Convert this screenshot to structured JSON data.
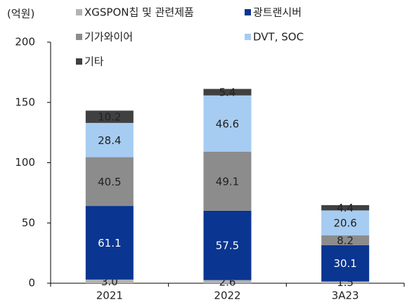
{
  "chart_data": {
    "type": "stacked_bar",
    "y_label": "(억원)",
    "categories": [
      "2021",
      "2022",
      "3A23"
    ],
    "series": [
      {
        "name": "XGSPON칩 및 관련제품",
        "color": "#b3b3b3",
        "label_color": "#222222",
        "values": [
          3.0,
          2.6,
          1.5
        ],
        "value_labels": [
          "3.0",
          "2.6",
          "1.5"
        ]
      },
      {
        "name": "광트랜시버",
        "color": "#0a3591",
        "label_color": "#ffffff",
        "values": [
          61.1,
          57.5,
          30.1
        ]
      },
      {
        "name": "기가와이어",
        "color": "#8c8c8c",
        "label_color": "#222222",
        "values": [
          40.5,
          49.1,
          8.2
        ]
      },
      {
        "name": "DVT, SOC",
        "color": "#a6ccf2",
        "label_color": "#222222",
        "values": [
          28.4,
          46.6,
          20.6
        ]
      },
      {
        "name": "기타",
        "color": "#404040",
        "label_color": "#222222",
        "values": [
          10.2,
          5.4,
          4.4
        ]
      }
    ],
    "ylim": [
      0,
      200
    ],
    "yticks": [
      0,
      50,
      100,
      150,
      200
    ],
    "grid": false
  }
}
